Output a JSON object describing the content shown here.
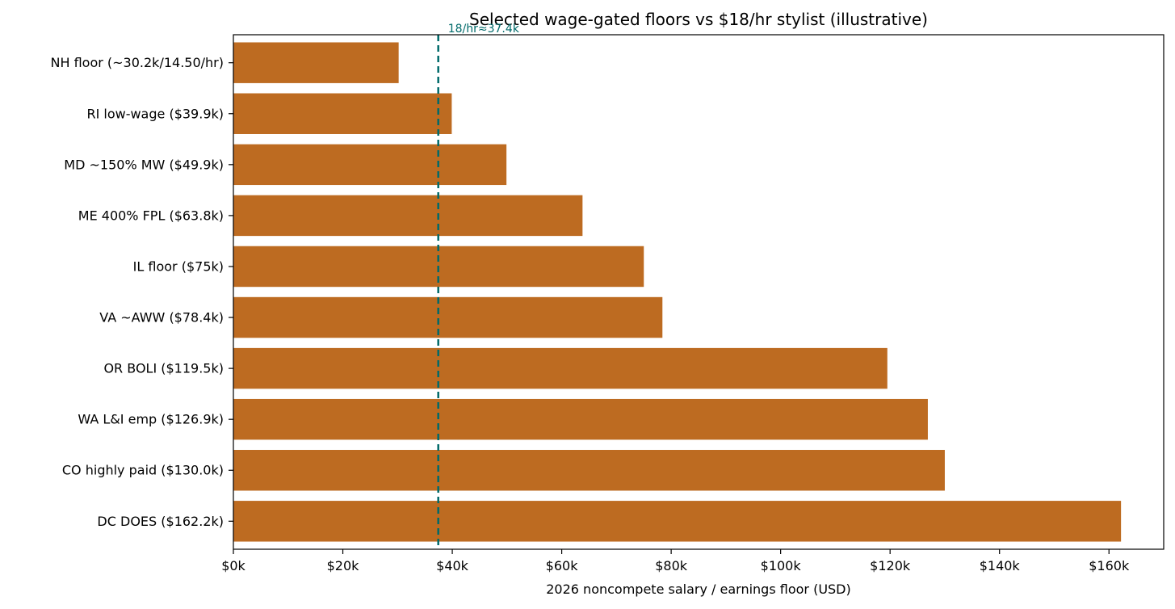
{
  "chart_data": {
    "type": "bar",
    "orientation": "horizontal",
    "title": "Selected wage-gated floors vs $18/hr stylist (illustrative)",
    "xlabel": "2026 noncompete salary / earnings floor (USD)",
    "ylabel": "",
    "xlim": [
      0,
      170000
    ],
    "x_ticks": [
      0,
      20000,
      40000,
      60000,
      80000,
      100000,
      120000,
      140000,
      160000
    ],
    "x_tick_labels": [
      "$0k",
      "$20k",
      "$40k",
      "$60k",
      "$80k",
      "$100k",
      "$120k",
      "$140k",
      "$160k"
    ],
    "categories": [
      "NH floor (~30.2k/14.50/hr)",
      "RI low-wage ($39.9k)",
      "MD ~150% MW ($49.9k)",
      "ME 400% FPL ($63.8k)",
      "IL floor ($75k)",
      "VA ~AWW ($78.4k)",
      "OR BOLI ($119.5k)",
      "WA L&I emp ($126.9k)",
      "CO highly paid ($130.0k)",
      "DC DOES ($162.2k)"
    ],
    "values": [
      30200,
      39900,
      49900,
      63800,
      75000,
      78400,
      119500,
      126900,
      130000,
      162200
    ],
    "bar_color": "#bd6b21",
    "reference_line": {
      "value": 37440,
      "label": "18/hr≈37.4k",
      "color": "#006a6a",
      "style": "dashed"
    },
    "grid": false,
    "legend": "none"
  }
}
